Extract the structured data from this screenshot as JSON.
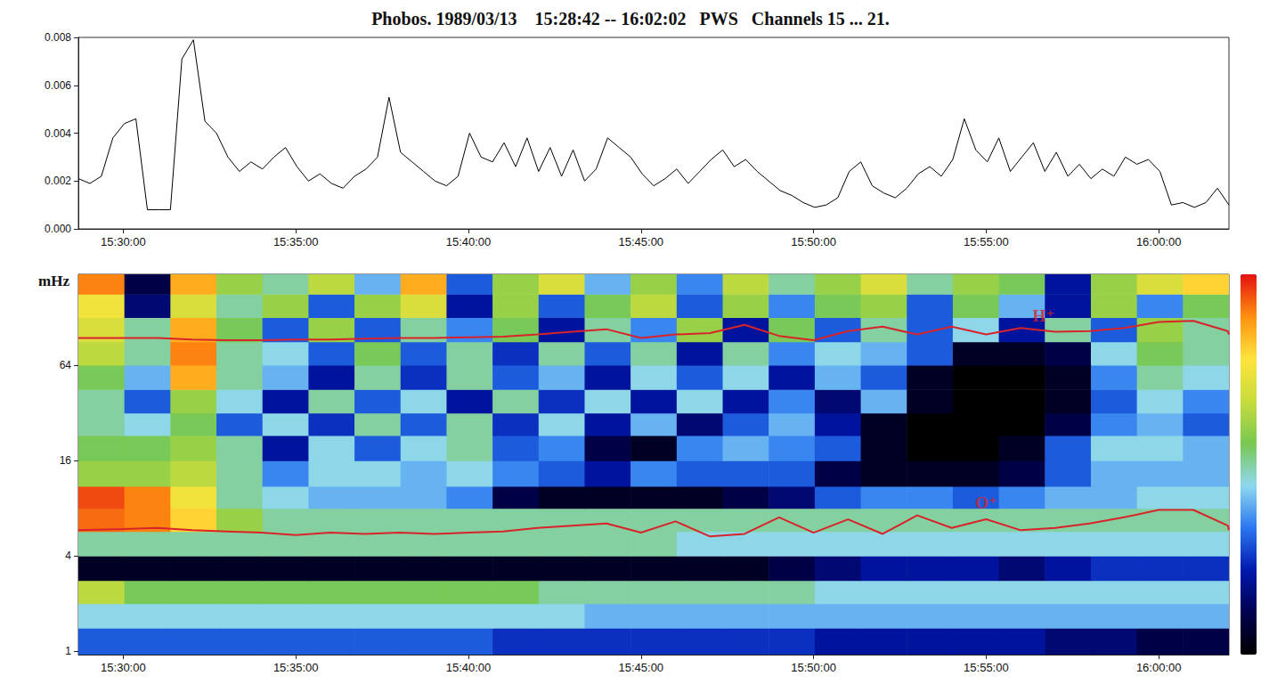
{
  "chart_data": [
    {
      "type": "line",
      "title": "Phobos. 1989/03/13    15:28:42 -- 16:02:02   PWS   Channels 15 ... 21.",
      "color": "#000000",
      "grid": false,
      "x": [
        "15:28:42",
        "15:29:02",
        "15:29:22",
        "15:29:42",
        "15:30:02",
        "15:30:22",
        "15:30:42",
        "15:31:02",
        "15:31:22",
        "15:31:42",
        "15:32:02",
        "15:32:22",
        "15:32:42",
        "15:33:02",
        "15:33:22",
        "15:33:42",
        "15:34:02",
        "15:34:22",
        "15:34:42",
        "15:35:02",
        "15:35:22",
        "15:35:42",
        "15:36:02",
        "15:36:22",
        "15:36:42",
        "15:37:02",
        "15:37:22",
        "15:37:42",
        "15:38:02",
        "15:38:22",
        "15:38:42",
        "15:39:02",
        "15:39:22",
        "15:39:42",
        "15:40:02",
        "15:40:22",
        "15:40:42",
        "15:41:02",
        "15:41:22",
        "15:41:42",
        "15:42:02",
        "15:42:22",
        "15:42:42",
        "15:43:02",
        "15:43:22",
        "15:43:42",
        "15:44:02",
        "15:44:22",
        "15:44:42",
        "15:45:02",
        "15:45:22",
        "15:45:42",
        "15:46:02",
        "15:46:22",
        "15:46:42",
        "15:47:02",
        "15:47:22",
        "15:47:42",
        "15:48:02",
        "15:48:22",
        "15:48:42",
        "15:49:02",
        "15:49:22",
        "15:49:42",
        "15:50:02",
        "15:50:22",
        "15:50:42",
        "15:51:02",
        "15:51:22",
        "15:51:42",
        "15:52:02",
        "15:52:22",
        "15:52:42",
        "15:53:02",
        "15:53:22",
        "15:53:42",
        "15:54:02",
        "15:54:22",
        "15:54:42",
        "15:55:02",
        "15:55:22",
        "15:55:42",
        "15:56:02",
        "15:56:22",
        "15:56:42",
        "15:57:02",
        "15:57:22",
        "15:57:42",
        "15:58:02",
        "15:58:22",
        "15:58:42",
        "15:59:02",
        "15:59:22",
        "15:59:42",
        "16:00:02",
        "16:00:22",
        "16:00:42",
        "16:01:02",
        "16:01:22",
        "16:01:42",
        "16:02:02"
      ],
      "values": [
        0.0021,
        0.0019,
        0.0022,
        0.0038,
        0.0044,
        0.0046,
        0.0008,
        0.0008,
        0.0008,
        0.0071,
        0.0079,
        0.0045,
        0.004,
        0.003,
        0.0024,
        0.0028,
        0.0025,
        0.003,
        0.0034,
        0.0026,
        0.002,
        0.0023,
        0.0019,
        0.0017,
        0.0022,
        0.0025,
        0.003,
        0.0055,
        0.0032,
        0.0028,
        0.0024,
        0.002,
        0.0018,
        0.0022,
        0.004,
        0.003,
        0.0028,
        0.0036,
        0.0026,
        0.0038,
        0.0024,
        0.0034,
        0.0022,
        0.0033,
        0.002,
        0.0025,
        0.0038,
        0.0034,
        0.003,
        0.0023,
        0.0018,
        0.0021,
        0.0025,
        0.0019,
        0.0024,
        0.0029,
        0.0033,
        0.0026,
        0.0029,
        0.0024,
        0.002,
        0.0016,
        0.0014,
        0.0011,
        0.0009,
        0.001,
        0.0013,
        0.0024,
        0.0028,
        0.0018,
        0.0015,
        0.0013,
        0.0017,
        0.0023,
        0.0026,
        0.0022,
        0.0029,
        0.0046,
        0.0033,
        0.0028,
        0.0038,
        0.0024,
        0.003,
        0.0036,
        0.0024,
        0.0032,
        0.0022,
        0.0027,
        0.0021,
        0.0025,
        0.0022,
        0.003,
        0.0027,
        0.0029,
        0.0024,
        0.001,
        0.0011,
        0.0009,
        0.0011,
        0.0017,
        0.001
      ],
      "xlim": [
        "15:28:42",
        "16:02:02"
      ],
      "xticks": [
        "15:30:00",
        "15:35:00",
        "15:40:00",
        "15:45:00",
        "15:50:00",
        "15:55:00",
        "16:00:00"
      ],
      "ylim": [
        0,
        0.008
      ],
      "yticks": [
        {
          "value": 0,
          "label": "0.000"
        },
        {
          "value": 0.002,
          "label": "0.002"
        },
        {
          "value": 0.004,
          "label": "0.004"
        },
        {
          "value": 0.006,
          "label": "0.006"
        },
        {
          "value": 0.008,
          "label": "0.008"
        }
      ]
    },
    {
      "type": "heatmap",
      "y_label": "mHz",
      "log": "y",
      "grid": false,
      "xlim": [
        "15:28:42",
        "16:02:02"
      ],
      "xticks": [
        "15:30:00",
        "15:35:00",
        "15:40:00",
        "15:45:00",
        "15:50:00",
        "15:55:00",
        "16:00:00"
      ],
      "ylim": [
        0.95,
        240
      ],
      "yticks": [
        1,
        4,
        16,
        64
      ],
      "time_bins": [
        "15:28:42",
        "15:30:02",
        "15:31:22",
        "15:32:42",
        "15:34:02",
        "15:35:22",
        "15:36:42",
        "15:38:02",
        "15:39:22",
        "15:40:42",
        "15:42:02",
        "15:43:22",
        "15:44:42",
        "15:46:02",
        "15:47:22",
        "15:48:42",
        "15:50:02",
        "15:51:22",
        "15:52:42",
        "15:54:02",
        "15:55:22",
        "15:56:42",
        "15:58:02",
        "15:59:22",
        "16:00:42",
        "16:02:02"
      ],
      "freq_bins": [
        0.95,
        1.4,
        2,
        2.8,
        4,
        5.7,
        8,
        11,
        16,
        23,
        32,
        45,
        64,
        90,
        128,
        180,
        240
      ],
      "color_range": [
        0,
        1
      ],
      "power": [
        [
          0.3,
          0.3,
          0.3,
          0.3,
          0.3,
          0.3,
          0.3,
          0.3,
          0.3,
          0.25,
          0.25,
          0.25,
          0.25,
          0.25,
          0.25,
          0.25,
          0.2,
          0.2,
          0.2,
          0.2,
          0.2,
          0.15,
          0.15,
          0.1,
          0.1
        ],
        [
          0.45,
          0.45,
          0.45,
          0.45,
          0.45,
          0.45,
          0.45,
          0.45,
          0.45,
          0.45,
          0.45,
          0.4,
          0.4,
          0.4,
          0.4,
          0.4,
          0.4,
          0.4,
          0.4,
          0.4,
          0.4,
          0.4,
          0.4,
          0.4,
          0.4
        ],
        [
          0.65,
          0.55,
          0.55,
          0.55,
          0.55,
          0.55,
          0.55,
          0.55,
          0.55,
          0.55,
          0.5,
          0.5,
          0.5,
          0.5,
          0.5,
          0.5,
          0.45,
          0.45,
          0.45,
          0.45,
          0.45,
          0.45,
          0.45,
          0.45,
          0.45
        ],
        [
          0.05,
          0.05,
          0.05,
          0.05,
          0.05,
          0.05,
          0.05,
          0.05,
          0.05,
          0.05,
          0.05,
          0.05,
          0.05,
          0.05,
          0.05,
          0.1,
          0.15,
          0.2,
          0.2,
          0.2,
          0.15,
          0.2,
          0.25,
          0.25,
          0.25
        ],
        [
          0.5,
          0.5,
          0.5,
          0.5,
          0.5,
          0.5,
          0.5,
          0.5,
          0.5,
          0.5,
          0.5,
          0.5,
          0.5,
          0.45,
          0.45,
          0.45,
          0.45,
          0.45,
          0.45,
          0.45,
          0.45,
          0.45,
          0.45,
          0.45,
          0.45
        ],
        [
          0.92,
          0.9,
          0.8,
          0.6,
          0.5,
          0.5,
          0.5,
          0.5,
          0.5,
          0.5,
          0.5,
          0.5,
          0.5,
          0.5,
          0.5,
          0.5,
          0.5,
          0.5,
          0.5,
          0.5,
          0.5,
          0.5,
          0.5,
          0.5,
          0.5
        ],
        [
          0.95,
          0.9,
          0.75,
          0.5,
          0.45,
          0.4,
          0.4,
          0.4,
          0.35,
          0.1,
          0.05,
          0.05,
          0.05,
          0.05,
          0.1,
          0.15,
          0.3,
          0.35,
          0.35,
          0.3,
          0.35,
          0.4,
          0.4,
          0.45,
          0.45
        ],
        [
          0.6,
          0.6,
          0.65,
          0.5,
          0.35,
          0.45,
          0.45,
          0.4,
          0.45,
          0.35,
          0.3,
          0.2,
          0.35,
          0.3,
          0.3,
          0.3,
          0.1,
          0.05,
          0.05,
          0.05,
          0.1,
          0.3,
          0.4,
          0.4,
          0.4
        ],
        [
          0.55,
          0.55,
          0.6,
          0.5,
          0.2,
          0.45,
          0.3,
          0.45,
          0.5,
          0.3,
          0.35,
          0.1,
          0.05,
          0.35,
          0.4,
          0.35,
          0.3,
          0.05,
          0.0,
          0.0,
          0.05,
          0.3,
          0.45,
          0.45,
          0.4
        ],
        [
          0.5,
          0.45,
          0.55,
          0.3,
          0.45,
          0.25,
          0.5,
          0.3,
          0.5,
          0.25,
          0.45,
          0.2,
          0.4,
          0.15,
          0.3,
          0.4,
          0.2,
          0.05,
          0.0,
          0.0,
          0.0,
          0.1,
          0.35,
          0.4,
          0.3
        ],
        [
          0.5,
          0.3,
          0.6,
          0.45,
          0.2,
          0.5,
          0.3,
          0.45,
          0.2,
          0.5,
          0.25,
          0.45,
          0.2,
          0.45,
          0.2,
          0.35,
          0.15,
          0.4,
          0.05,
          0.0,
          0.0,
          0.05,
          0.3,
          0.45,
          0.35
        ],
        [
          0.55,
          0.4,
          0.85,
          0.5,
          0.4,
          0.2,
          0.5,
          0.25,
          0.5,
          0.3,
          0.4,
          0.2,
          0.45,
          0.3,
          0.45,
          0.2,
          0.4,
          0.3,
          0.05,
          0.0,
          0.0,
          0.05,
          0.35,
          0.5,
          0.45
        ],
        [
          0.65,
          0.5,
          0.9,
          0.5,
          0.45,
          0.3,
          0.55,
          0.3,
          0.5,
          0.25,
          0.5,
          0.3,
          0.5,
          0.2,
          0.5,
          0.35,
          0.45,
          0.4,
          0.3,
          0.05,
          0.05,
          0.1,
          0.45,
          0.55,
          0.5
        ],
        [
          0.7,
          0.5,
          0.85,
          0.55,
          0.3,
          0.6,
          0.3,
          0.5,
          0.35,
          0.55,
          0.2,
          0.5,
          0.35,
          0.6,
          0.2,
          0.55,
          0.3,
          0.5,
          0.3,
          0.45,
          0.2,
          0.5,
          0.3,
          0.6,
          0.5
        ],
        [
          0.75,
          0.15,
          0.7,
          0.5,
          0.6,
          0.3,
          0.6,
          0.7,
          0.2,
          0.6,
          0.3,
          0.55,
          0.65,
          0.3,
          0.6,
          0.35,
          0.55,
          0.6,
          0.3,
          0.55,
          0.4,
          0.2,
          0.6,
          0.35,
          0.55
        ],
        [
          0.9,
          0.1,
          0.85,
          0.6,
          0.5,
          0.65,
          0.4,
          0.85,
          0.3,
          0.6,
          0.7,
          0.4,
          0.6,
          0.35,
          0.65,
          0.5,
          0.6,
          0.7,
          0.5,
          0.6,
          0.55,
          0.2,
          0.6,
          0.7,
          0.8
        ]
      ],
      "series": [
        {
          "type": "line",
          "color": "#d8232a",
          "x": [
            "15:28:42",
            "15:30:00",
            "15:31:00",
            "15:32:00",
            "15:33:00",
            "15:34:00",
            "15:35:00",
            "15:36:00",
            "15:37:00",
            "15:38:00",
            "15:39:00",
            "15:40:00",
            "15:41:00",
            "15:42:00",
            "15:43:00",
            "15:44:00",
            "15:45:00",
            "15:46:00",
            "15:47:00",
            "15:48:00",
            "15:49:00",
            "15:50:00",
            "15:51:00",
            "15:52:00",
            "15:53:00",
            "15:54:00",
            "15:55:00",
            "15:56:00",
            "15:57:00",
            "15:58:00",
            "15:59:00",
            "16:00:00",
            "16:01:00",
            "16:02:00",
            "16:02:02"
          ],
          "values": [
            95,
            95,
            95,
            93,
            92,
            92,
            93,
            93,
            94,
            95,
            95,
            96,
            97,
            100,
            104,
            108,
            95,
            100,
            102,
            115,
            98,
            92,
            105,
            112,
            100,
            112,
            100,
            110,
            104,
            105,
            110,
            120,
            122,
            105,
            100
          ]
        },
        {
          "type": "line",
          "color": "#d8232a",
          "x": [
            "15:28:42",
            "15:30:00",
            "15:31:00",
            "15:32:00",
            "15:33:00",
            "15:34:00",
            "15:35:00",
            "15:36:00",
            "15:37:00",
            "15:38:00",
            "15:39:00",
            "15:40:00",
            "15:41:00",
            "15:42:00",
            "15:43:00",
            "15:44:00",
            "15:45:00",
            "15:46:00",
            "15:47:00",
            "15:48:00",
            "15:49:00",
            "15:50:00",
            "15:51:00",
            "15:52:00",
            "15:53:00",
            "15:54:00",
            "15:55:00",
            "15:56:00",
            "15:57:00",
            "15:58:00",
            "15:59:00",
            "16:00:00",
            "16:01:00",
            "16:02:00",
            "16:02:02"
          ],
          "values": [
            5.8,
            5.9,
            6.0,
            5.8,
            5.7,
            5.6,
            5.4,
            5.6,
            5.5,
            5.6,
            5.5,
            5.6,
            5.7,
            6.0,
            6.2,
            6.4,
            5.6,
            6.6,
            5.3,
            5.5,
            7.0,
            5.6,
            6.8,
            5.5,
            7.2,
            6.0,
            6.8,
            5.8,
            6.0,
            6.4,
            7.0,
            7.8,
            7.8,
            6.2,
            5.8
          ]
        }
      ],
      "annotations": [
        {
          "text": "H⁺",
          "x": "15:56:40",
          "y": 132,
          "color": "#d8232a"
        },
        {
          "text": "O⁺",
          "x": "15:55:00",
          "y": 8.6,
          "color": "#d8232a"
        }
      ]
    }
  ]
}
